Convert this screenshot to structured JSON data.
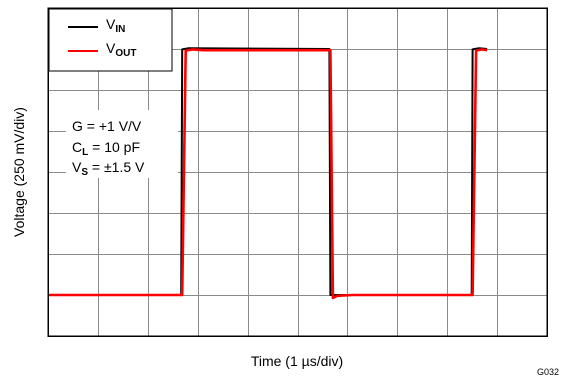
{
  "chart_data": {
    "type": "line",
    "title": "",
    "xlabel": "Time (1 µs/div)",
    "ylabel": "Voltage (250 mV/div)",
    "figure_id": "G032",
    "x_unit": "div",
    "y_unit": "div",
    "xlim": [
      0,
      10
    ],
    "ylim": [
      0,
      8
    ],
    "divisions": {
      "x": 10,
      "y": 8
    },
    "grid": true,
    "legend_position": "top-left",
    "series": [
      {
        "name": "VIN",
        "label_main": "V",
        "label_sub": "IN",
        "color": "#000000",
        "x": [
          0.0,
          2.67,
          2.69,
          2.82,
          5.64,
          5.66,
          8.49,
          8.51,
          8.64,
          8.8
        ],
        "y": [
          1.0,
          1.0,
          6.99,
          7.02,
          7.0,
          1.0,
          1.0,
          6.99,
          7.02,
          7.0
        ]
      },
      {
        "name": "VOUT",
        "label_main": "V",
        "label_sub": "OUT",
        "color": "#ff0000",
        "x": [
          0.0,
          2.69,
          2.76,
          2.9,
          3.1,
          5.66,
          5.71,
          5.8,
          6.1,
          8.51,
          8.58,
          8.7,
          8.8
        ],
        "y": [
          1.0,
          1.0,
          6.96,
          6.99,
          6.97,
          6.97,
          0.93,
          0.98,
          1.0,
          1.0,
          6.96,
          6.99,
          6.97
        ]
      }
    ],
    "annotations": [
      {
        "main": "G = +1 V/V",
        "sub": "",
        "rest": ""
      },
      {
        "main": "C",
        "sub": "L",
        "rest": " = 10 pF"
      },
      {
        "main": "V",
        "sub": "S",
        "rest": " = ±1.5 V"
      }
    ]
  }
}
